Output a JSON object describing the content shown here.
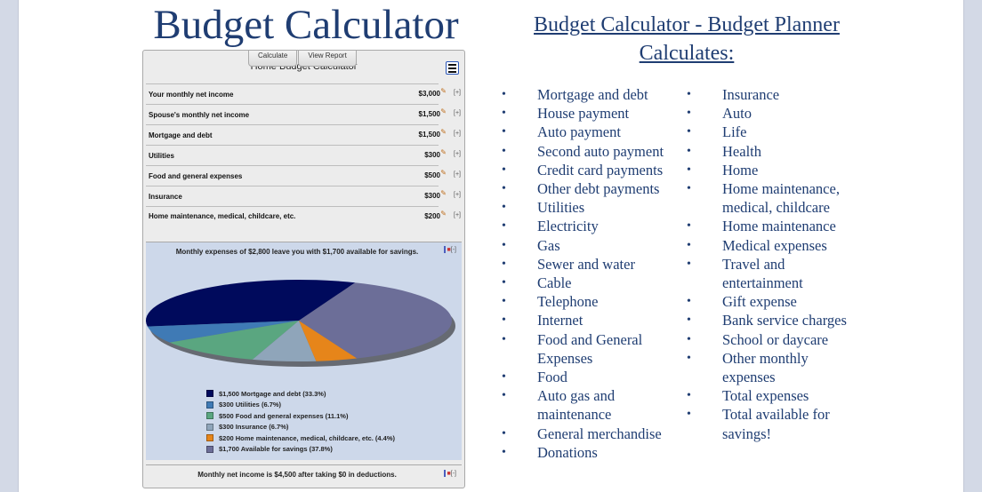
{
  "page_title": "Budget Calculator",
  "right_title": "Budget Calculator - Budget Planner Calculates:",
  "widget": {
    "tabs": [
      "Calculate",
      "View Report"
    ],
    "header": "Home Budget Calculator",
    "menu_icon": "hamburger-menu-icon",
    "rows": [
      {
        "label": "Your monthly net income",
        "amount": "$3,000"
      },
      {
        "label": "Spouse's monthly net income",
        "amount": "$1,500"
      },
      {
        "label": "Mortgage and debt",
        "amount": "$1,500"
      },
      {
        "label": "Utilities",
        "amount": "$300"
      },
      {
        "label": "Food and general expenses",
        "amount": "$500"
      },
      {
        "label": "Insurance",
        "amount": "$300"
      },
      {
        "label": "Home maintenance, medical, childcare, etc.",
        "amount": "$200"
      }
    ],
    "edit_icon": "pencil-icon",
    "expand_label": "[+]",
    "collapse_label": "[-]",
    "chart_summary": "Monthly expenses of $2,800 leave you with $1,700 available for savings.",
    "footer": "Monthly net income is $4,500 after taking $0 in deductions."
  },
  "chart_data": {
    "type": "pie",
    "slices": [
      {
        "label": "$1,500 Mortgage and debt (33.3%)",
        "value": 33.3,
        "color": "#000a5c"
      },
      {
        "label": "$300 Utilities (6.7%)",
        "value": 6.7,
        "color": "#3f7ab5"
      },
      {
        "label": "$500 Food and general expenses (11.1%)",
        "value": 11.1,
        "color": "#5aa680"
      },
      {
        "label": "$300 Insurance (6.7%)",
        "value": 6.7,
        "color": "#8fa5ba"
      },
      {
        "label": "$200 Home maintenance, medical, childcare, etc. (4.4%)",
        "value": 4.4,
        "color": "#e6851a"
      },
      {
        "label": "$1,700 Available for savings (37.8%)",
        "value": 37.8,
        "color": "#6c6e98"
      }
    ]
  },
  "list_col1": [
    "Mortgage and debt",
    "House payment",
    "Auto payment",
    "Second auto payment",
    "Credit card payments",
    "Other debt payments",
    "Utilities",
    "Electricity",
    "Gas",
    "Sewer and water",
    "Cable",
    "Telephone",
    "Internet",
    "Food and General Expenses",
    "Food",
    "Auto gas and maintenance",
    "General merchandise",
    "Donations"
  ],
  "list_col2": [
    "Insurance",
    "Auto",
    "Life",
    "Health",
    "Home",
    "Home maintenance, medical, childcare",
    "Home maintenance",
    "Medical expenses",
    "Travel and entertainment",
    "Gift expense",
    "Bank service charges",
    "School or daycare",
    "Other monthly expenses",
    "Total expenses",
    "Total available for savings!"
  ]
}
